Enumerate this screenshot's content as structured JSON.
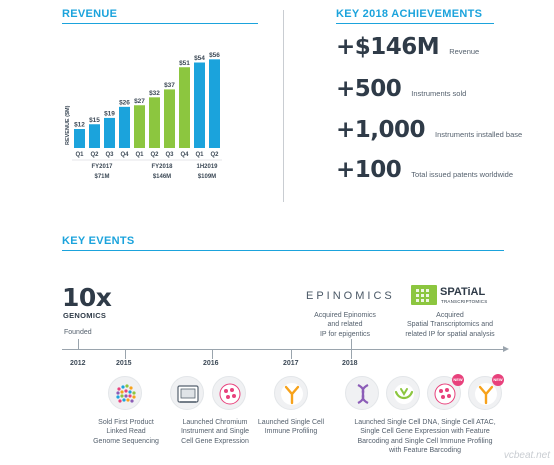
{
  "revenue": {
    "title": "REVENUE",
    "colors": {
      "fy2017": "#1ba3dc",
      "fy2018": "#8cc63f",
      "h2019": "#1ba3dc"
    },
    "chart_data": {
      "type": "bar",
      "categories": [
        "Q1",
        "Q2",
        "Q3",
        "Q4",
        "Q1",
        "Q2",
        "Q3",
        "Q4",
        "Q1",
        "Q2"
      ],
      "values": [
        12,
        15,
        19,
        26,
        27,
        32,
        37,
        51,
        54,
        56
      ],
      "labels": [
        "$12",
        "$15",
        "$19",
        "$26",
        "$27",
        "$32",
        "$37",
        "$51",
        "$54",
        "$56"
      ],
      "series_group": [
        "fy2017",
        "fy2017",
        "fy2017",
        "fy2017",
        "fy2018",
        "fy2018",
        "fy2018",
        "fy2018",
        "h2019",
        "h2019"
      ],
      "ylabel": "REVENUE ($M)",
      "ylim": [
        0,
        60
      ],
      "groups": [
        {
          "name": "FY2017",
          "total": "$71M"
        },
        {
          "name": "FY2018",
          "total": "$146M"
        },
        {
          "name": "1H2019",
          "total": "$109M"
        }
      ]
    }
  },
  "achievements": {
    "title": "KEY 2018 ACHIEVEMENTS",
    "items": [
      {
        "value": "+$146M",
        "label": "Revenue"
      },
      {
        "value": "+500",
        "label": "Instruments sold"
      },
      {
        "value": "+1,000",
        "label": "Instruments installed base"
      },
      {
        "value": "+100",
        "label": "Total issued patents worldwide"
      }
    ]
  },
  "events": {
    "title": "KEY EVENTS",
    "logo_10x": {
      "big": "10x",
      "small": "GENOMICS"
    },
    "founded": "Founded",
    "epinomics_logo": "EPINOMICS",
    "epinomics_text": [
      "Acquired Epinomics",
      "and related",
      "IP for epigentics"
    ],
    "spatial_logo": {
      "big": "SPATiAL",
      "small": "TRANSCRIPTOMICS"
    },
    "spatial_text": [
      "Acquired",
      "Spatial Transcriptomics and",
      "related IP for spatial analysis"
    ],
    "years": [
      "2012",
      "2015",
      "2016",
      "2017",
      "2018"
    ],
    "e2015": [
      "Sold First Product",
      "Linked Read",
      "Genome Sequencing"
    ],
    "e2016": [
      "Launched Chromium",
      "Instrument and Single",
      "Cell Gene Expression"
    ],
    "e2017": [
      "Launched Single Cell",
      "Immune Profiling"
    ],
    "e2018": [
      "Launched Single Cell DNA, Single Cell ATAC,",
      "Single Cell Gene Expression with Feature",
      "Barcoding and Single Cell Immune Profiling",
      "with Feature Barcoding"
    ],
    "new_badge": "NEW"
  },
  "watermark": "vcbeat.net"
}
